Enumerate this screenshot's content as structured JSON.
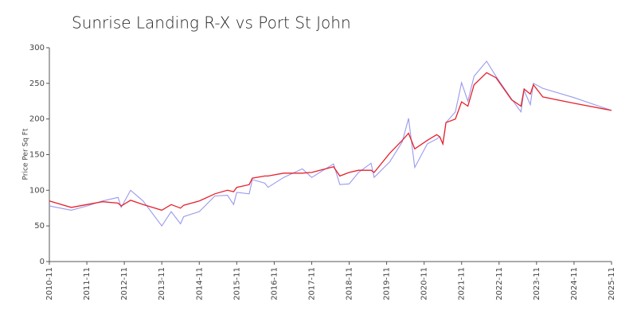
{
  "chart_data": {
    "type": "line",
    "title": "Sunrise Landing R-X vs Port St John",
    "ylabel": "Price Per Sq Ft",
    "x": [
      "2010-11",
      "2011-06",
      "2011-11",
      "2012-04",
      "2012-09",
      "2012-10",
      "2013-01",
      "2013-05",
      "2013-11",
      "2014-02",
      "2014-05",
      "2014-06",
      "2014-11",
      "2015-04",
      "2015-08",
      "2015-10",
      "2015-11",
      "2016-03",
      "2016-04",
      "2016-08",
      "2016-09",
      "2017-02",
      "2017-08",
      "2017-11",
      "2018-06",
      "2018-08",
      "2018-11",
      "2019-02",
      "2019-06",
      "2019-07",
      "2019-12",
      "2020-04",
      "2020-06",
      "2020-08",
      "2020-12",
      "2021-03",
      "2021-04",
      "2021-05",
      "2021-06",
      "2021-09",
      "2021-11",
      "2022-01",
      "2022-03",
      "2022-07",
      "2022-10",
      "2023-03",
      "2023-06",
      "2023-07",
      "2023-09",
      "2023-10",
      "2024-01",
      "2024-11",
      "2025-11"
    ],
    "series": [
      {
        "color": "#9999ee",
        "values": [
          78,
          72,
          78,
          85,
          90,
          76,
          100,
          85,
          50,
          70,
          53,
          63,
          70,
          92,
          93,
          80,
          97,
          95,
          115,
          110,
          104,
          118,
          130,
          118,
          137,
          108,
          109,
          125,
          138,
          118,
          140,
          168,
          201,
          132,
          165,
          172,
          175,
          165,
          195,
          210,
          251,
          225,
          260,
          281,
          260,
          228,
          210,
          240,
          220,
          250,
          243,
          230,
          212
        ]
      },
      {
        "color": "#e8202a",
        "values": [
          85,
          76,
          80,
          84,
          82,
          78,
          86,
          80,
          72,
          80,
          75,
          79,
          85,
          95,
          100,
          98,
          104,
          108,
          117,
          120,
          120,
          124,
          124,
          125,
          133,
          120,
          125,
          128,
          128,
          125,
          152,
          170,
          180,
          158,
          170,
          178,
          175,
          165,
          195,
          200,
          224,
          218,
          248,
          265,
          258,
          227,
          218,
          242,
          235,
          248,
          231,
          222,
          212
        ]
      }
    ],
    "xlim": [
      "2010-11",
      "2025-11"
    ],
    "xticks": [
      "2010-11",
      "2011-11",
      "2012-11",
      "2013-11",
      "2014-11",
      "2015-11",
      "2016-11",
      "2017-11",
      "2018-11",
      "2019-11",
      "2020-11",
      "2021-11",
      "2022-11",
      "2023-11",
      "2024-11",
      "2025-11"
    ],
    "ylim": [
      0,
      300
    ],
    "yticks": [
      0,
      50,
      100,
      150,
      200,
      250,
      300
    ]
  }
}
